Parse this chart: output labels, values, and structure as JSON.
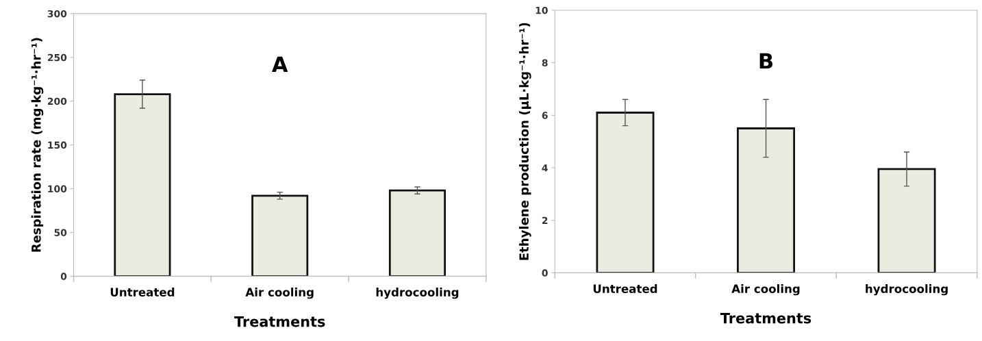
{
  "chart_data": [
    {
      "type": "bar",
      "categories": [
        "Untreated",
        "Air cooling",
        "hydrocooling"
      ],
      "values": [
        208,
        92,
        98
      ],
      "errors": [
        16,
        4,
        4
      ],
      "color": "#ecebe0",
      "ylim": [
        0,
        300
      ],
      "yticks": [
        0,
        50,
        100,
        150,
        200,
        250,
        300
      ],
      "xlabel": "Treatments",
      "ylabel": "Respiration rate (mg·kg⁻¹·hr⁻¹)",
      "annotations": [
        "A"
      ],
      "grid": false,
      "legend": false
    },
    {
      "type": "bar",
      "categories": [
        "Untreated",
        "Air cooling",
        "hydrocooling"
      ],
      "values": [
        6.1,
        5.5,
        3.95
      ],
      "errors": [
        0.5,
        1.1,
        0.65
      ],
      "color": "#ecebe0",
      "ylim": [
        0,
        10
      ],
      "yticks": [
        0,
        2,
        4,
        6,
        8,
        10
      ],
      "xlabel": "Treatments",
      "ylabel": "Ethylene production (μL·kg⁻¹·hr⁻¹)",
      "annotations": [
        "B"
      ],
      "grid": false,
      "legend": false
    }
  ]
}
